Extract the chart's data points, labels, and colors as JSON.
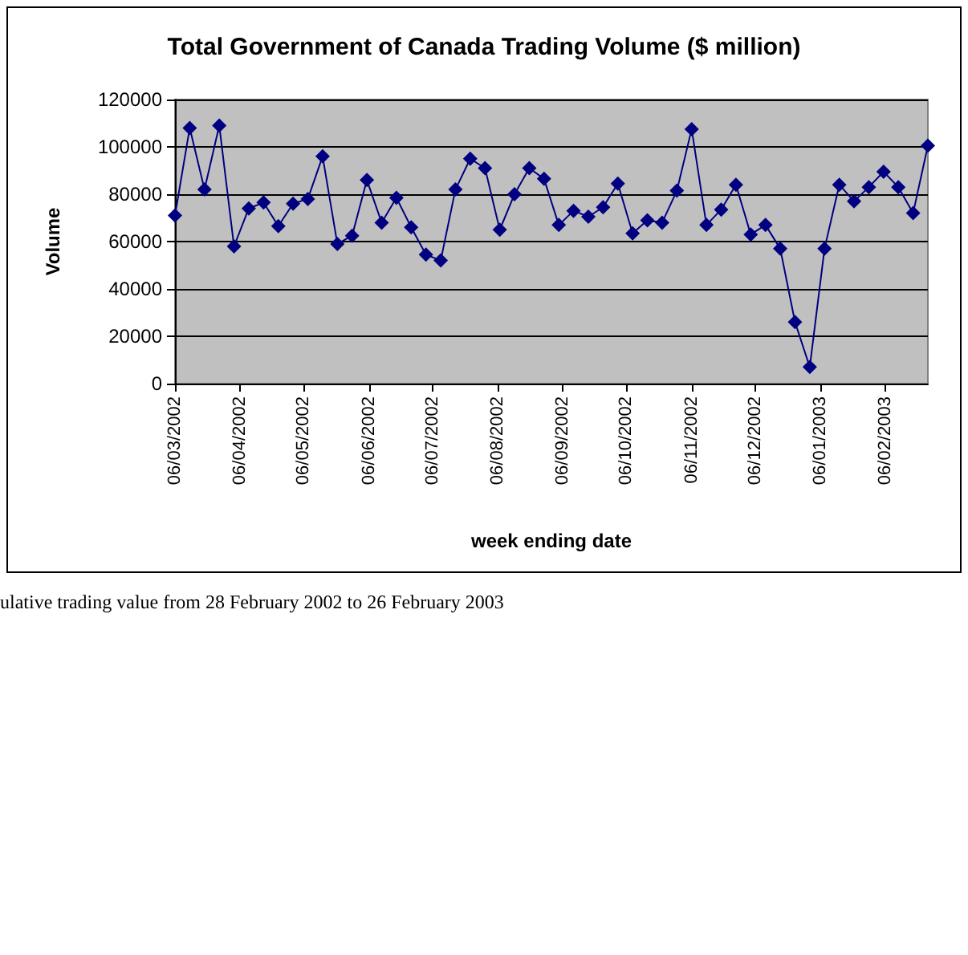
{
  "chart_data": {
    "type": "line",
    "title": "Total Government of Canada Trading Volume ($ million)",
    "xlabel": "week ending date",
    "ylabel": "Volume",
    "x": [
      "2002-03-06",
      "2002-03-13",
      "2002-03-20",
      "2002-03-27",
      "2002-04-03",
      "2002-04-10",
      "2002-04-17",
      "2002-04-24",
      "2002-05-01",
      "2002-05-08",
      "2002-05-15",
      "2002-05-22",
      "2002-05-29",
      "2002-06-05",
      "2002-06-12",
      "2002-06-19",
      "2002-06-26",
      "2002-07-03",
      "2002-07-10",
      "2002-07-17",
      "2002-07-24",
      "2002-07-31",
      "2002-08-07",
      "2002-08-14",
      "2002-08-21",
      "2002-08-28",
      "2002-09-04",
      "2002-09-11",
      "2002-09-18",
      "2002-09-25",
      "2002-10-02",
      "2002-10-09",
      "2002-10-16",
      "2002-10-23",
      "2002-10-30",
      "2002-11-06",
      "2002-11-13",
      "2002-11-20",
      "2002-11-27",
      "2002-12-04",
      "2002-12-11",
      "2002-12-18",
      "2002-12-25",
      "2003-01-01",
      "2003-01-08",
      "2003-01-15",
      "2003-01-22",
      "2003-01-29",
      "2003-02-05",
      "2003-02-12",
      "2003-02-19",
      "2003-02-26"
    ],
    "series": [
      {
        "color": "#000080",
        "values": [
          71000,
          108000,
          82000,
          109000,
          58000,
          74000,
          76500,
          66500,
          76000,
          78000,
          96000,
          59000,
          62500,
          86000,
          68000,
          78500,
          66000,
          54500,
          52000,
          82000,
          95000,
          91000,
          65000,
          80000,
          91000,
          86500,
          67000,
          73000,
          70500,
          74500,
          84500,
          63500,
          69000,
          68000,
          81500,
          107500,
          67000,
          73500,
          84000,
          63000,
          67000,
          57000,
          26000,
          7000,
          57000,
          84000,
          77000,
          83000,
          89500,
          83000,
          72000,
          100500
        ]
      }
    ],
    "xlim": [
      "2002-03-06",
      "2003-02-26"
    ],
    "xticks": [
      {
        "value": "2002-03-06",
        "label": "06/03/2002"
      },
      {
        "value": "2002-04-06",
        "label": "06/04/2002"
      },
      {
        "value": "2002-05-06",
        "label": "06/05/2002"
      },
      {
        "value": "2002-06-06",
        "label": "06/06/2002"
      },
      {
        "value": "2002-07-06",
        "label": "06/07/2002"
      },
      {
        "value": "2002-08-06",
        "label": "06/08/2002"
      },
      {
        "value": "2002-09-06",
        "label": "06/09/2002"
      },
      {
        "value": "2002-10-06",
        "label": "06/10/2002"
      },
      {
        "value": "2002-11-06",
        "label": "06/11/2002"
      },
      {
        "value": "2002-12-06",
        "label": "06/12/2002"
      },
      {
        "value": "2003-01-06",
        "label": "06/01/2003"
      },
      {
        "value": "2003-02-06",
        "label": "06/02/2003"
      }
    ],
    "ylim": [
      0,
      120000
    ],
    "yticks": [
      0,
      20000,
      40000,
      60000,
      80000,
      100000,
      120000
    ],
    "grid": "y",
    "marker": "diamond",
    "line_style": "solid",
    "annotations": [
      "ulative trading value from 28 February 2002 to 26 February 2003"
    ]
  }
}
